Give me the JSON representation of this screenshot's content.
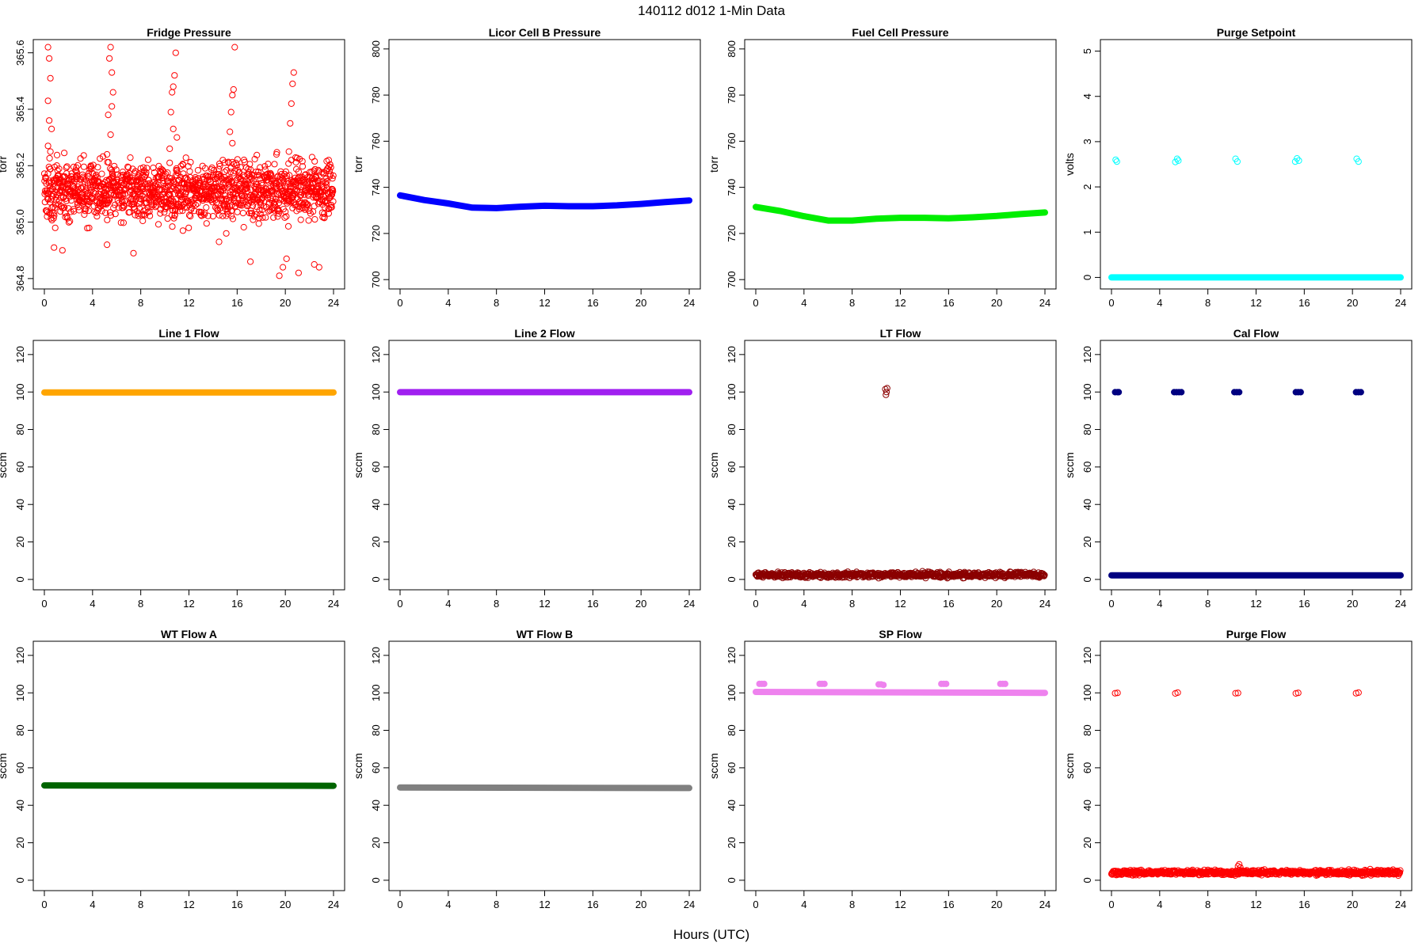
{
  "figure": {
    "title": "140112   d012   1-Min Data",
    "xlabel": "Hours (UTC)"
  },
  "chart_data": [
    {
      "type": "scatter",
      "title": "Fridge Pressure",
      "ylabel": "torr",
      "xlim": [
        0,
        24
      ],
      "xticks": [
        0,
        4,
        8,
        12,
        16,
        20,
        24
      ],
      "ylim": [
        364.78,
        365.63
      ],
      "yticks": [
        364.8,
        365.0,
        365.2,
        365.4,
        365.6
      ],
      "ytick_labels": [
        "364.8",
        "365.0",
        "365.2",
        "365.4",
        "365.6"
      ],
      "color": "#ff0000",
      "marker": "open-circle",
      "points": [
        [
          0.3,
          365.62
        ],
        [
          0.4,
          365.58
        ],
        [
          0.5,
          365.51
        ],
        [
          0.3,
          365.43
        ],
        [
          0.4,
          365.36
        ],
        [
          0.6,
          365.33
        ],
        [
          0.3,
          365.27
        ],
        [
          0.5,
          365.25
        ],
        [
          0.8,
          364.91
        ],
        [
          1.5,
          364.9
        ],
        [
          2.6,
          365.16
        ],
        [
          5.2,
          364.92
        ],
        [
          5.4,
          365.58
        ],
        [
          5.5,
          365.62
        ],
        [
          5.6,
          365.53
        ],
        [
          5.7,
          365.46
        ],
        [
          5.6,
          365.41
        ],
        [
          5.3,
          365.38
        ],
        [
          5.5,
          365.31
        ],
        [
          5.2,
          365.24
        ],
        [
          7.4,
          364.89
        ],
        [
          10.4,
          365.26
        ],
        [
          10.5,
          365.39
        ],
        [
          10.6,
          365.46
        ],
        [
          10.7,
          365.48
        ],
        [
          10.8,
          365.52
        ],
        [
          10.9,
          365.6
        ],
        [
          10.7,
          365.33
        ],
        [
          11,
          365.3
        ],
        [
          10.4,
          365.21
        ],
        [
          11.5,
          364.97
        ],
        [
          14.5,
          364.93
        ],
        [
          15.1,
          364.96
        ],
        [
          15.3,
          365.21
        ],
        [
          15.4,
          365.32
        ],
        [
          15.5,
          365.39
        ],
        [
          15.6,
          365.45
        ],
        [
          15.7,
          365.47
        ],
        [
          15.8,
          365.62
        ],
        [
          15.6,
          365.28
        ],
        [
          17.1,
          364.86
        ],
        [
          19.5,
          364.81
        ],
        [
          20.3,
          365.25
        ],
        [
          20.4,
          365.35
        ],
        [
          20.5,
          365.42
        ],
        [
          20.6,
          365.49
        ],
        [
          20.7,
          365.53
        ],
        [
          20.5,
          365.22
        ],
        [
          19.8,
          364.84
        ],
        [
          20.1,
          364.87
        ],
        [
          21.1,
          364.82
        ],
        [
          22.4,
          364.85
        ],
        [
          22.8,
          364.84
        ],
        [
          23.6,
          365.22
        ]
      ],
      "scatter_center": 365.11,
      "scatter_spread": 0.085
    },
    {
      "type": "scatter",
      "title": "Licor Cell B Pressure",
      "ylabel": "torr",
      "xlim": [
        0,
        24
      ],
      "xticks": [
        0,
        4,
        8,
        12,
        16,
        20,
        24
      ],
      "ylim": [
        698,
        802
      ],
      "yticks": [
        700,
        720,
        740,
        760,
        780,
        800
      ],
      "ytick_labels": [
        "700",
        "720",
        "740",
        "760",
        "780",
        "800"
      ],
      "color": "#0000ff",
      "marker": "filled-circle",
      "line": [
        [
          0,
          736.5
        ],
        [
          2,
          734.5
        ],
        [
          4,
          733
        ],
        [
          6,
          731.2
        ],
        [
          8,
          731
        ],
        [
          10,
          731.6
        ],
        [
          12,
          732
        ],
        [
          14,
          731.8
        ],
        [
          16,
          731.8
        ],
        [
          18,
          732.2
        ],
        [
          20,
          732.8
        ],
        [
          22,
          733.6
        ],
        [
          24,
          734.3
        ]
      ]
    },
    {
      "type": "scatter",
      "title": "Fuel Cell Pressure",
      "ylabel": "torr",
      "xlim": [
        0,
        24
      ],
      "xticks": [
        0,
        4,
        8,
        12,
        16,
        20,
        24
      ],
      "ylim": [
        698,
        802
      ],
      "yticks": [
        700,
        720,
        740,
        760,
        780,
        800
      ],
      "ytick_labels": [
        "700",
        "720",
        "740",
        "760",
        "780",
        "800"
      ],
      "color": "#00ee00",
      "marker": "filled-circle",
      "line": [
        [
          0,
          731.5
        ],
        [
          2,
          729.8
        ],
        [
          4,
          727.5
        ],
        [
          6,
          725.6
        ],
        [
          8,
          725.6
        ],
        [
          10,
          726.4
        ],
        [
          12,
          726.8
        ],
        [
          14,
          726.8
        ],
        [
          16,
          726.6
        ],
        [
          18,
          727
        ],
        [
          20,
          727.6
        ],
        [
          22,
          728.4
        ],
        [
          24,
          729.1
        ]
      ]
    },
    {
      "type": "scatter",
      "title": "Purge Setpoint",
      "ylabel": "volts",
      "xlim": [
        0,
        24
      ],
      "xticks": [
        0,
        4,
        8,
        12,
        16,
        20,
        24
      ],
      "ylim": [
        -0.15,
        5.15
      ],
      "yticks": [
        0,
        1,
        2,
        3,
        4,
        5
      ],
      "ytick_labels": [
        "0",
        "1",
        "2",
        "3",
        "4",
        "5"
      ],
      "color": "#00ffff",
      "marker": "open-circle",
      "line": [
        [
          0,
          0
        ],
        [
          24,
          0
        ]
      ],
      "points": [
        [
          0.35,
          2.6
        ],
        [
          0.45,
          2.56
        ],
        [
          5.3,
          2.55
        ],
        [
          5.45,
          2.62
        ],
        [
          5.55,
          2.58
        ],
        [
          10.3,
          2.62
        ],
        [
          10.45,
          2.56
        ],
        [
          15.25,
          2.56
        ],
        [
          15.4,
          2.63
        ],
        [
          15.55,
          2.58
        ],
        [
          20.35,
          2.62
        ],
        [
          20.5,
          2.56
        ]
      ]
    },
    {
      "type": "scatter",
      "title": "Line 1 Flow",
      "ylabel": "sccm",
      "xlim": [
        0,
        24
      ],
      "xticks": [
        0,
        4,
        8,
        12,
        16,
        20,
        24
      ],
      "ylim": [
        -3,
        125
      ],
      "yticks": [
        0,
        20,
        40,
        60,
        80,
        100,
        120
      ],
      "ytick_labels": [
        "0",
        "20",
        "40",
        "60",
        "80",
        "100",
        "120"
      ],
      "color": "#ffa500",
      "marker": "filled-circle",
      "line": [
        [
          0,
          99.8
        ],
        [
          24,
          99.8
        ]
      ]
    },
    {
      "type": "scatter",
      "title": "Line 2 Flow",
      "ylabel": "sccm",
      "xlim": [
        0,
        24
      ],
      "xticks": [
        0,
        4,
        8,
        12,
        16,
        20,
        24
      ],
      "ylim": [
        -3,
        125
      ],
      "yticks": [
        0,
        20,
        40,
        60,
        80,
        100,
        120
      ],
      "ytick_labels": [
        "0",
        "20",
        "40",
        "60",
        "80",
        "100",
        "120"
      ],
      "color": "#a020f0",
      "marker": "filled-circle",
      "line": [
        [
          0,
          99.9
        ],
        [
          24,
          99.9
        ]
      ]
    },
    {
      "type": "scatter",
      "title": "LT Flow",
      "ylabel": "sccm",
      "xlim": [
        0,
        24
      ],
      "xticks": [
        0,
        4,
        8,
        12,
        16,
        20,
        24
      ],
      "ylim": [
        -3,
        125
      ],
      "yticks": [
        0,
        20,
        40,
        60,
        80,
        100,
        120
      ],
      "ytick_labels": [
        "0",
        "20",
        "40",
        "60",
        "80",
        "100",
        "120"
      ],
      "color": "#8b0000",
      "marker": "open-circle",
      "points": [
        [
          10.75,
          101.5
        ],
        [
          10.85,
          100
        ],
        [
          10.8,
          98.5
        ],
        [
          10.9,
          102
        ]
      ],
      "scatter_center": 2.4,
      "scatter_spread": 1.2
    },
    {
      "type": "scatter",
      "title": "Cal Flow",
      "ylabel": "sccm",
      "xlim": [
        0,
        24
      ],
      "xticks": [
        0,
        4,
        8,
        12,
        16,
        20,
        24
      ],
      "ylim": [
        -3,
        125
      ],
      "yticks": [
        0,
        20,
        40,
        60,
        80,
        100,
        120
      ],
      "ytick_labels": [
        "0",
        "20",
        "40",
        "60",
        "80",
        "100",
        "120"
      ],
      "color": "#000080",
      "marker": "filled-circle",
      "line": [
        [
          0,
          2.2
        ],
        [
          24,
          2.2
        ]
      ],
      "points": [
        [
          0.3,
          99.9
        ],
        [
          0.5,
          99.9
        ],
        [
          0.6,
          99.9
        ],
        [
          5.2,
          99.9
        ],
        [
          5.4,
          99.9
        ],
        [
          5.6,
          99.9
        ],
        [
          5.8,
          99.9
        ],
        [
          10.2,
          99.9
        ],
        [
          10.4,
          99.9
        ],
        [
          10.6,
          99.9
        ],
        [
          15.3,
          99.9
        ],
        [
          15.5,
          99.9
        ],
        [
          15.7,
          99.9
        ],
        [
          20.3,
          99.9
        ],
        [
          20.5,
          99.9
        ],
        [
          20.7,
          99.9
        ]
      ]
    },
    {
      "type": "scatter",
      "title": "WT Flow A",
      "ylabel": "sccm",
      "xlim": [
        0,
        24
      ],
      "xticks": [
        0,
        4,
        8,
        12,
        16,
        20,
        24
      ],
      "ylim": [
        -3,
        125
      ],
      "yticks": [
        0,
        20,
        40,
        60,
        80,
        100,
        120
      ],
      "ytick_labels": [
        "0",
        "20",
        "40",
        "60",
        "80",
        "100",
        "120"
      ],
      "color": "#006400",
      "marker": "filled-circle",
      "line": [
        [
          0,
          50.6
        ],
        [
          24,
          50.4
        ]
      ]
    },
    {
      "type": "scatter",
      "title": "WT Flow B",
      "ylabel": "sccm",
      "xlim": [
        0,
        24
      ],
      "xticks": [
        0,
        4,
        8,
        12,
        16,
        20,
        24
      ],
      "ylim": [
        -3,
        125
      ],
      "yticks": [
        0,
        20,
        40,
        60,
        80,
        100,
        120
      ],
      "ytick_labels": [
        "0",
        "20",
        "40",
        "60",
        "80",
        "100",
        "120"
      ],
      "color": "#808080",
      "marker": "filled-circle",
      "line": [
        [
          0,
          49.5
        ],
        [
          24,
          49.2
        ]
      ]
    },
    {
      "type": "scatter",
      "title": "SP Flow",
      "ylabel": "sccm",
      "xlim": [
        0,
        24
      ],
      "xticks": [
        0,
        4,
        8,
        12,
        16,
        20,
        24
      ],
      "ylim": [
        -3,
        125
      ],
      "yticks": [
        0,
        20,
        40,
        60,
        80,
        100,
        120
      ],
      "ytick_labels": [
        "0",
        "20",
        "40",
        "60",
        "80",
        "100",
        "120"
      ],
      "color": "#ee82ee",
      "marker": "filled-circle",
      "line": [
        [
          0,
          100.5
        ],
        [
          24,
          100
        ]
      ],
      "points": [
        [
          0.3,
          104.8
        ],
        [
          0.5,
          104.8
        ],
        [
          0.7,
          104.8
        ],
        [
          5.3,
          104.8
        ],
        [
          5.5,
          104.8
        ],
        [
          5.7,
          104.8
        ],
        [
          10.2,
          104.5
        ],
        [
          10.4,
          104.5
        ],
        [
          10.6,
          104.2
        ],
        [
          15.4,
          104.8
        ],
        [
          15.6,
          104.8
        ],
        [
          15.8,
          104.8
        ],
        [
          20.3,
          104.8
        ],
        [
          20.5,
          104.8
        ],
        [
          20.7,
          104.8
        ]
      ]
    },
    {
      "type": "scatter",
      "title": "Purge Flow",
      "ylabel": "sccm",
      "xlim": [
        0,
        24
      ],
      "xticks": [
        0,
        4,
        8,
        12,
        16,
        20,
        24
      ],
      "ylim": [
        -3,
        125
      ],
      "yticks": [
        0,
        20,
        40,
        60,
        80,
        100,
        120
      ],
      "ytick_labels": [
        "0",
        "20",
        "40",
        "60",
        "80",
        "100",
        "120"
      ],
      "color": "#ff0000",
      "marker": "open-circle",
      "points": [
        [
          0.3,
          99.8
        ],
        [
          0.5,
          100
        ],
        [
          5.3,
          99.7
        ],
        [
          5.5,
          100.1
        ],
        [
          10.3,
          99.8
        ],
        [
          10.5,
          99.9
        ],
        [
          15.3,
          99.7
        ],
        [
          15.5,
          100
        ],
        [
          20.3,
          99.8
        ],
        [
          20.5,
          100.1
        ],
        [
          10.6,
          8.5
        ],
        [
          10.5,
          7.5
        ],
        [
          10.7,
          6.8
        ]
      ],
      "scatter_center": 4.1,
      "scatter_spread": 1.1
    }
  ]
}
